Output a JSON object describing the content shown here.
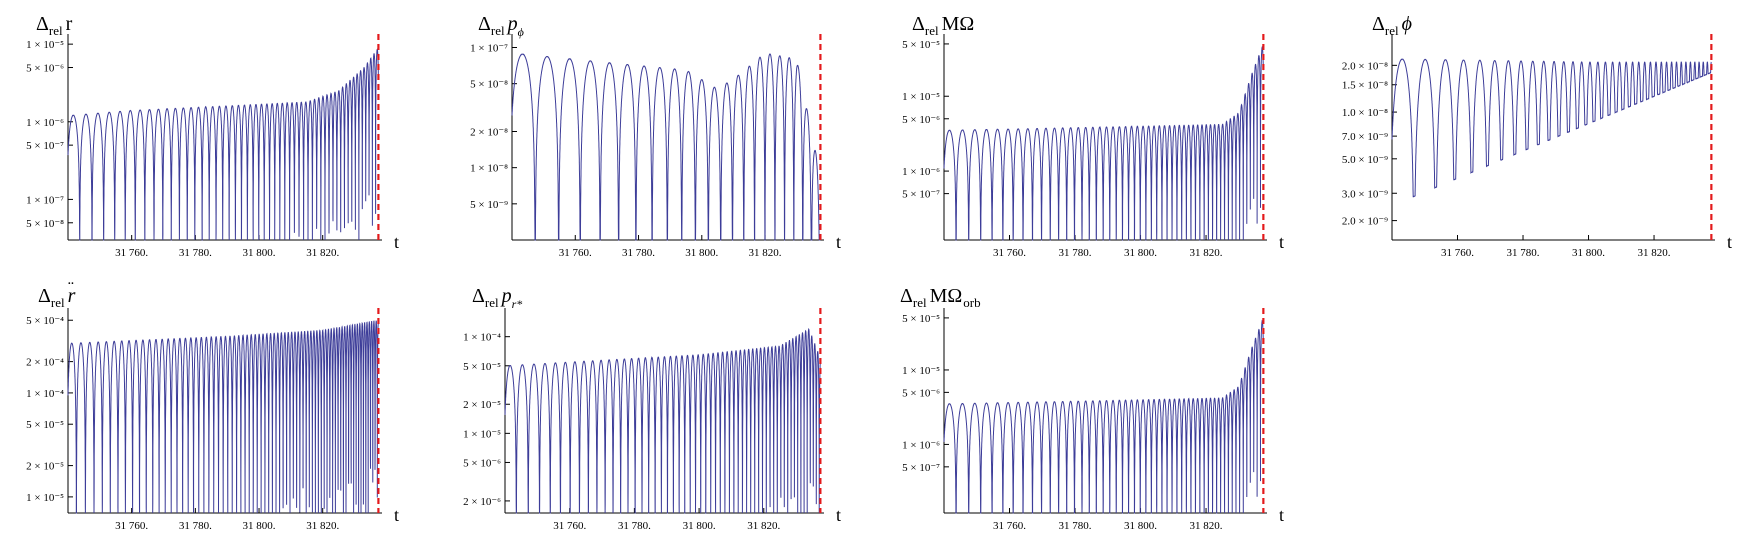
{
  "figure": {
    "panels": [
      {
        "id": "dr",
        "title_parts": [
          "Δ",
          "rel",
          "r"
        ],
        "col": 0,
        "row": 0
      },
      {
        "id": "dpphi",
        "title_parts": [
          "Δ",
          "rel",
          "p",
          "ϕ"
        ],
        "col": 1,
        "row": 0
      },
      {
        "id": "dmomega",
        "title_parts": [
          "Δ",
          "rel",
          "MΩ"
        ],
        "col": 2,
        "row": 0
      },
      {
        "id": "dphi",
        "title_parts": [
          "Δ",
          "rel",
          "ϕ"
        ],
        "col": 3,
        "row": 0
      },
      {
        "id": "drddot",
        "title_parts": [
          "Δ",
          "rel",
          "r"
        ],
        "col": 0,
        "row": 1
      },
      {
        "id": "dprstar",
        "title_parts": [
          "Δ",
          "rel",
          "p",
          "r*"
        ],
        "col": 1,
        "row": 1
      },
      {
        "id": "dmomegaorb",
        "title_parts": [
          "Δ",
          "rel",
          "MΩ",
          "orb"
        ],
        "col": 2,
        "row": 1
      }
    ]
  },
  "chart_data": [
    {
      "type": "line",
      "id": "dr",
      "title": "Δrel r",
      "xlabel": "t",
      "ylabel": "",
      "log_y": true,
      "xlim": [
        31740,
        31838
      ],
      "ylim": [
        3e-08,
        1.2e-05
      ],
      "xticks": [
        31760,
        31780,
        31800,
        31820
      ],
      "xtick_labels": [
        "31 760.",
        "31 780.",
        "31 800.",
        "31 820."
      ],
      "yticks": [
        1e-05,
        5e-06,
        1e-06,
        5e-07,
        1e-07,
        5e-08
      ],
      "ytick_labels": [
        "1 × 10⁻⁵",
        "5 × 10⁻⁶",
        "1 × 10⁻⁶",
        "5 × 10⁻⁷",
        "1 × 10⁻⁷",
        "5 × 10⁻⁸"
      ],
      "vline": 31837.5,
      "line_color": "#3d3d99",
      "vline_color": "#e41a1c",
      "series": [
        {
          "envelope": [
            [
              31740,
              1.2e-06
            ],
            [
              31760,
              1.4e-06
            ],
            [
              31790,
              1.6e-06
            ],
            [
              31815,
              1.8e-06
            ],
            [
              31825,
              2.5e-06
            ],
            [
              31833,
              5e-06
            ],
            [
              31837.5,
              9e-06
            ]
          ],
          "period_start": 4.2,
          "period_end": 1.0,
          "min_value": 3e-08
        }
      ]
    },
    {
      "type": "line",
      "id": "dpphi",
      "title": "Δrel pϕ",
      "xlabel": "t",
      "ylabel": "",
      "log_y": true,
      "xlim": [
        31740,
        31838
      ],
      "ylim": [
        2.5e-09,
        1.2e-07
      ],
      "xticks": [
        31760,
        31780,
        31800,
        31820
      ],
      "xtick_labels": [
        "31 760.",
        "31 780.",
        "31 800.",
        "31 820."
      ],
      "yticks": [
        1e-07,
        5e-08,
        2e-08,
        1e-08,
        5e-09
      ],
      "ytick_labels": [
        "1 × 10⁻⁷",
        "5 × 10⁻⁸",
        "2 × 10⁻⁸",
        "1 × 10⁻⁸",
        "5 × 10⁻⁹"
      ],
      "vline": 31837.5,
      "line_color": "#3d3d99",
      "vline_color": "#e41a1c",
      "series": [
        {
          "envelope": [
            [
              31740,
              9e-08
            ],
            [
              31770,
              7.5e-08
            ],
            [
              31795,
              6.5e-08
            ],
            [
              31805,
              4.5e-08
            ],
            [
              31812,
              6e-08
            ],
            [
              31820,
              9e-08
            ],
            [
              31830,
              8e-08
            ],
            [
              31837,
              1e-08
            ]
          ],
          "period_start": 8.5,
          "period_end": 2.6,
          "min_value": 2.5e-09
        }
      ]
    },
    {
      "type": "line",
      "id": "dmomega",
      "title": "Δrel MΩ",
      "xlabel": "t",
      "ylabel": "",
      "log_y": true,
      "xlim": [
        31740,
        31838
      ],
      "ylim": [
        1.2e-07,
        6e-05
      ],
      "xticks": [
        31760,
        31780,
        31800,
        31820
      ],
      "xtick_labels": [
        "31 760.",
        "31 780.",
        "31 800.",
        "31 820."
      ],
      "yticks": [
        5e-05,
        1e-05,
        5e-06,
        1e-06,
        5e-07
      ],
      "ytick_labels": [
        "5 × 10⁻⁵",
        "1 × 10⁻⁵",
        "5 × 10⁻⁶",
        "1 × 10⁻⁶",
        "5 × 10⁻⁷"
      ],
      "vline": 31837.5,
      "line_color": "#3d3d99",
      "vline_color": "#e41a1c",
      "series": [
        {
          "envelope": [
            [
              31740,
              3.5e-06
            ],
            [
              31780,
              3.8e-06
            ],
            [
              31825,
              4.2e-06
            ],
            [
              31830,
              6e-06
            ],
            [
              31834,
              2e-05
            ],
            [
              31837.5,
              5e-05
            ]
          ],
          "period_start": 4.2,
          "period_end": 1.0,
          "min_value": 1.2e-07
        }
      ]
    },
    {
      "type": "line",
      "id": "dphi",
      "title": "Δrel ϕ",
      "xlabel": "t",
      "ylabel": "",
      "log_y": true,
      "xlim": [
        31740,
        31838
      ],
      "ylim": [
        1.5e-09,
        3e-08
      ],
      "xticks": [
        31760,
        31780,
        31800,
        31820
      ],
      "xtick_labels": [
        "31 760.",
        "31 780.",
        "31 800.",
        "31 820."
      ],
      "yticks": [
        2e-08,
        1.5e-08,
        1e-08,
        7e-09,
        5e-09,
        3e-09,
        2e-09
      ],
      "ytick_labels": [
        "2.0 × 10⁻⁸",
        "1.5 × 10⁻⁸",
        "1.0 × 10⁻⁸",
        "7.0 × 10⁻⁹",
        "5.0 × 10⁻⁹",
        "3.0 × 10⁻⁹",
        "2.0 × 10⁻⁹"
      ],
      "vline": 31837.5,
      "line_color": "#3d3d99",
      "vline_color": "#e41a1c",
      "series": [
        {
          "envelope": [
            [
              31740,
              2.2e-08
            ],
            [
              31800,
              2.1e-08
            ],
            [
              31837.5,
              2.1e-08
            ]
          ],
          "period_start": 8.0,
          "period_end": 1.2,
          "min_value": 2.5e-09,
          "min_rising": 1.8e-08
        }
      ]
    },
    {
      "type": "line",
      "id": "drddot",
      "title": "Δrel r̈",
      "xlabel": "t",
      "ylabel": "",
      "log_y": true,
      "xlim": [
        31740,
        31838
      ],
      "ylim": [
        7e-06,
        0.0006
      ],
      "xticks": [
        31760,
        31780,
        31800,
        31820
      ],
      "xtick_labels": [
        "31 760.",
        "31 780.",
        "31 800.",
        "31 820."
      ],
      "yticks": [
        0.0005,
        0.0002,
        0.0001,
        5e-05,
        2e-05,
        1e-05
      ],
      "ytick_labels": [
        "5 × 10⁻⁴",
        "2 × 10⁻⁴",
        "1 × 10⁻⁴",
        "5 × 10⁻⁵",
        "2 × 10⁻⁵",
        "1 × 10⁻⁵"
      ],
      "vline": 31837.5,
      "line_color": "#3d3d99",
      "vline_color": "#e41a1c",
      "series": [
        {
          "envelope": [
            [
              31740,
              0.0003
            ],
            [
              31790,
              0.00035
            ],
            [
              31820,
              0.0004
            ],
            [
              31837.5,
              0.0005
            ]
          ],
          "period_start": 3.0,
          "period_end": 0.7,
          "min_value": 7e-06
        }
      ]
    },
    {
      "type": "line",
      "id": "dprstar",
      "title": "Δrel pr*",
      "xlabel": "t",
      "ylabel": "",
      "log_y": true,
      "xlim": [
        31740,
        31838
      ],
      "ylim": [
        1.5e-06,
        0.00018
      ],
      "xticks": [
        31760,
        31780,
        31800,
        31820
      ],
      "xtick_labels": [
        "31 760.",
        "31 780.",
        "31 800.",
        "31 820."
      ],
      "yticks": [
        0.0001,
        5e-05,
        2e-05,
        1e-05,
        5e-06,
        2e-06
      ],
      "ytick_labels": [
        "1 × 10⁻⁴",
        "5 × 10⁻⁵",
        "2 × 10⁻⁵",
        "1 × 10⁻⁵",
        "5 × 10⁻⁶",
        "2 × 10⁻⁶"
      ],
      "vline": 31837.5,
      "line_color": "#3d3d99",
      "vline_color": "#e41a1c",
      "series": [
        {
          "envelope": [
            [
              31740,
              5e-05
            ],
            [
              31800,
              6.5e-05
            ],
            [
              31825,
              8e-05
            ],
            [
              31834,
              0.00012
            ],
            [
              31837.5,
              6e-05
            ]
          ],
          "period_start": 4.0,
          "period_end": 0.9,
          "min_value": 1.5e-06
        }
      ]
    },
    {
      "type": "line",
      "id": "dmomegaorb",
      "title": "Δrel MΩorb",
      "xlabel": "t",
      "ylabel": "",
      "log_y": true,
      "xlim": [
        31740,
        31838
      ],
      "ylim": [
        1.2e-07,
        6e-05
      ],
      "xticks": [
        31760,
        31780,
        31800,
        31820
      ],
      "xtick_labels": [
        "31 760.",
        "31 780.",
        "31 800.",
        "31 820."
      ],
      "yticks": [
        5e-05,
        1e-05,
        5e-06,
        1e-06,
        5e-07
      ],
      "ytick_labels": [
        "5 × 10⁻⁵",
        "1 × 10⁻⁵",
        "5 × 10⁻⁶",
        "1 × 10⁻⁶",
        "5 × 10⁻⁷"
      ],
      "vline": 31837.5,
      "line_color": "#3d3d99",
      "vline_color": "#e41a1c",
      "series": [
        {
          "envelope": [
            [
              31740,
              3.5e-06
            ],
            [
              31780,
              3.8e-06
            ],
            [
              31825,
              4.2e-06
            ],
            [
              31830,
              6e-06
            ],
            [
              31834,
              2e-05
            ],
            [
              31837.5,
              5e-05
            ]
          ],
          "period_start": 4.2,
          "period_end": 1.0,
          "min_value": 1.2e-07
        }
      ]
    }
  ]
}
